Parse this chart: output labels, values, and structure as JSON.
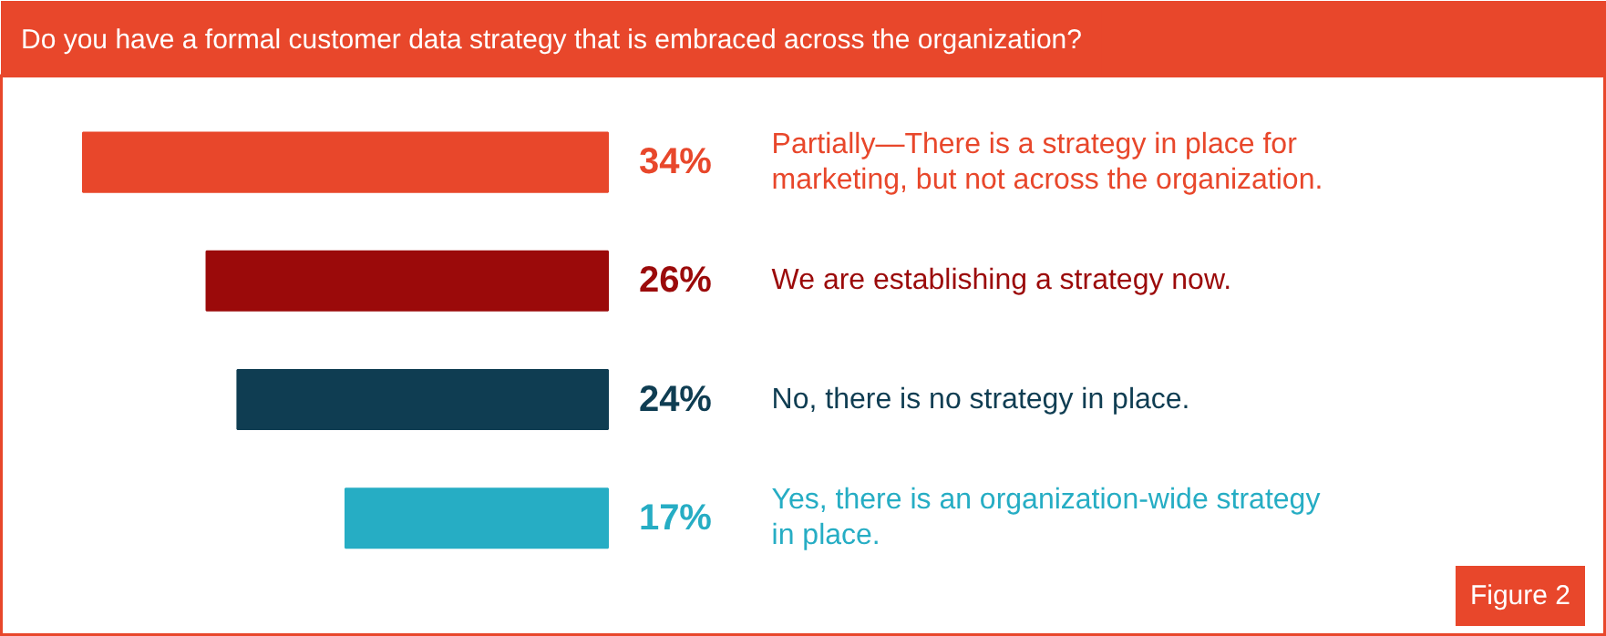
{
  "chart_data": {
    "type": "bar",
    "orientation": "horizontal",
    "title": "Do you have a formal customer data strategy that is embraced across the organization?",
    "categories": [
      "Partially—There is a strategy in place for marketing, but not across the organization.",
      "We are establishing a strategy now.",
      "No, there is no strategy in place.",
      "Yes, there is an organization-wide strategy in place."
    ],
    "values": [
      34,
      26,
      24,
      17
    ],
    "colors": [
      "#e8472b",
      "#9b0a0a",
      "#0f3d52",
      "#26adc4"
    ],
    "value_labels": [
      "34%",
      "26%",
      "24%",
      "17%"
    ],
    "annotations": [
      "Figure 2"
    ]
  }
}
